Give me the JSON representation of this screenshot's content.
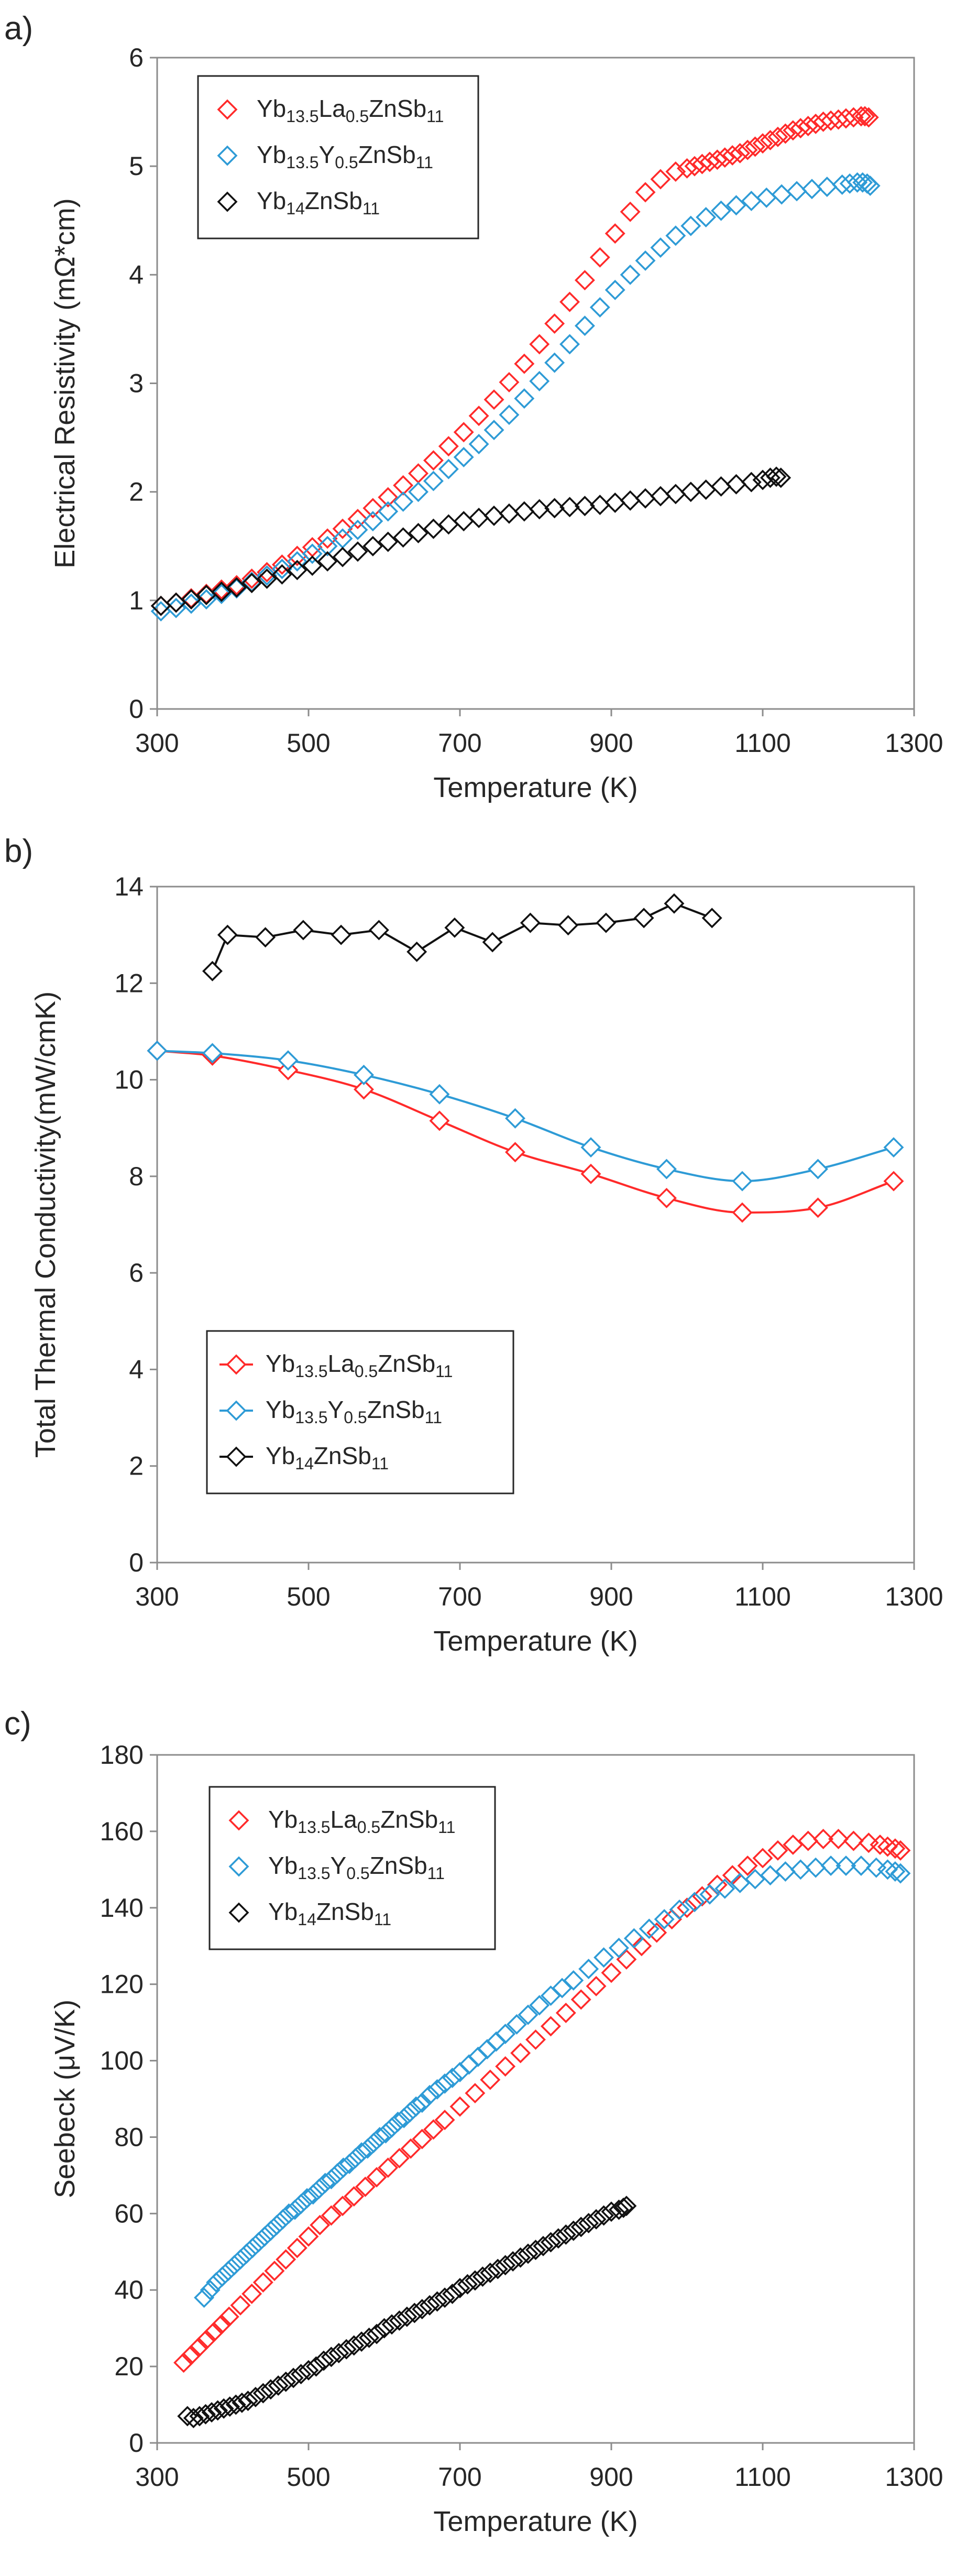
{
  "chart_data": [
    {
      "panel_label": "a)",
      "type": "scatter",
      "xlabel": "Temperature (K)",
      "ylabel": "Electrical Resistivity (mΩ*cm)",
      "xlim": [
        300,
        1300
      ],
      "ylim": [
        0,
        6
      ],
      "xticks": [
        300,
        500,
        700,
        900,
        1100,
        1300
      ],
      "yticks": [
        0,
        1,
        2,
        3,
        4,
        5,
        6
      ],
      "x_tick_labels": [
        "300",
        "500",
        "700",
        "900",
        "1100",
        "1300"
      ],
      "y_tick_labels": [
        "0",
        "1",
        "2",
        "3",
        "4",
        "5",
        "6"
      ],
      "legend_position": "top-left",
      "series": [
        {
          "name": "Yb13.5La0.5ZnSb11",
          "legend": {
            "base": "Yb",
            "sub1": "13.5",
            "mid": "La",
            "sub2": "0.5",
            "post": "ZnSb",
            "sub3": "11"
          },
          "color": "#ff2a2a",
          "marker": "diamond",
          "line": false,
          "x": [
            305,
            325,
            345,
            365,
            385,
            405,
            425,
            445,
            465,
            485,
            505,
            525,
            545,
            565,
            585,
            605,
            625,
            645,
            665,
            685,
            705,
            725,
            745,
            765,
            785,
            805,
            825,
            845,
            865,
            885,
            905,
            925,
            945,
            965,
            985,
            1000,
            1010,
            1020,
            1030,
            1040,
            1050,
            1060,
            1070,
            1080,
            1090,
            1100,
            1110,
            1120,
            1130,
            1140,
            1150,
            1160,
            1170,
            1180,
            1190,
            1200,
            1210,
            1220,
            1230,
            1235,
            1240
          ],
          "y": [
            0.95,
            0.98,
            1.02,
            1.06,
            1.1,
            1.14,
            1.2,
            1.26,
            1.33,
            1.41,
            1.49,
            1.57,
            1.66,
            1.75,
            1.85,
            1.95,
            2.06,
            2.17,
            2.29,
            2.42,
            2.55,
            2.7,
            2.85,
            3.01,
            3.18,
            3.36,
            3.55,
            3.75,
            3.95,
            4.16,
            4.38,
            4.58,
            4.76,
            4.88,
            4.95,
            4.98,
            5.0,
            5.02,
            5.04,
            5.06,
            5.08,
            5.1,
            5.12,
            5.15,
            5.18,
            5.21,
            5.24,
            5.27,
            5.3,
            5.33,
            5.35,
            5.37,
            5.39,
            5.41,
            5.42,
            5.43,
            5.44,
            5.45,
            5.46,
            5.46,
            5.45
          ]
        },
        {
          "name": "Yb13.5Y0.5ZnSb11",
          "legend": {
            "base": "Yb",
            "sub1": "13.5",
            "mid": "Y",
            "sub2": "0.5",
            "post": "ZnSb",
            "sub3": "11"
          },
          "color": "#2e9bd6",
          "marker": "diamond",
          "line": false,
          "x": [
            305,
            325,
            345,
            365,
            385,
            405,
            425,
            445,
            465,
            485,
            505,
            525,
            545,
            565,
            585,
            605,
            625,
            645,
            665,
            685,
            705,
            725,
            745,
            765,
            785,
            805,
            825,
            845,
            865,
            885,
            905,
            925,
            945,
            965,
            985,
            1005,
            1025,
            1045,
            1065,
            1085,
            1105,
            1125,
            1145,
            1165,
            1185,
            1205,
            1215,
            1225,
            1232,
            1238,
            1242
          ],
          "y": [
            0.9,
            0.93,
            0.97,
            1.01,
            1.06,
            1.11,
            1.17,
            1.23,
            1.29,
            1.36,
            1.43,
            1.5,
            1.57,
            1.65,
            1.73,
            1.82,
            1.91,
            2.0,
            2.1,
            2.21,
            2.32,
            2.44,
            2.57,
            2.71,
            2.86,
            3.02,
            3.19,
            3.36,
            3.53,
            3.7,
            3.86,
            4.0,
            4.13,
            4.25,
            4.36,
            4.45,
            4.53,
            4.59,
            4.64,
            4.68,
            4.71,
            4.74,
            4.77,
            4.79,
            4.81,
            4.83,
            4.84,
            4.85,
            4.85,
            4.84,
            4.82
          ]
        },
        {
          "name": "Yb14ZnSb11",
          "legend": {
            "base": "Yb",
            "sub1": "14",
            "mid": "",
            "sub2": "",
            "post": "ZnSb",
            "sub3": "11"
          },
          "color": "#111111",
          "marker": "diamond",
          "line": false,
          "x": [
            305,
            325,
            345,
            365,
            385,
            405,
            425,
            445,
            465,
            485,
            505,
            525,
            545,
            565,
            585,
            605,
            625,
            645,
            665,
            685,
            705,
            725,
            745,
            765,
            785,
            805,
            825,
            845,
            865,
            885,
            905,
            925,
            945,
            965,
            985,
            1005,
            1025,
            1045,
            1065,
            1085,
            1100,
            1110,
            1118,
            1124
          ],
          "y": [
            0.95,
            0.98,
            1.01,
            1.05,
            1.08,
            1.12,
            1.16,
            1.2,
            1.24,
            1.28,
            1.32,
            1.36,
            1.4,
            1.45,
            1.5,
            1.54,
            1.58,
            1.62,
            1.66,
            1.7,
            1.73,
            1.76,
            1.78,
            1.8,
            1.82,
            1.84,
            1.85,
            1.86,
            1.87,
            1.88,
            1.9,
            1.92,
            1.94,
            1.96,
            1.98,
            2.0,
            2.02,
            2.05,
            2.07,
            2.09,
            2.11,
            2.13,
            2.14,
            2.13
          ]
        }
      ]
    },
    {
      "panel_label": "b)",
      "type": "line",
      "xlabel": "Temperature (K)",
      "ylabel": "Total Thermal Conductivity(mW/cmK)",
      "xlim": [
        300,
        1300
      ],
      "ylim": [
        0,
        14
      ],
      "xticks": [
        300,
        500,
        700,
        900,
        1100,
        1300
      ],
      "yticks": [
        0,
        2,
        4,
        6,
        8,
        10,
        12,
        14
      ],
      "x_tick_labels": [
        "300",
        "500",
        "700",
        "900",
        "1100",
        "1300"
      ],
      "y_tick_labels": [
        "0",
        "2",
        "4",
        "6",
        "8",
        "10",
        "12",
        "14"
      ],
      "legend_position": "bottom-left",
      "series": [
        {
          "name": "Yb13.5La0.5ZnSb11",
          "legend": {
            "base": "Yb",
            "sub1": "13.5",
            "mid": "La",
            "sub2": "0.5",
            "post": "ZnSb",
            "sub3": "11"
          },
          "color": "#ff2a2a",
          "marker": "diamond",
          "line": true,
          "x": [
            300,
            373,
            473,
            573,
            673,
            773,
            873,
            973,
            1073,
            1173,
            1273
          ],
          "y": [
            10.6,
            10.5,
            10.2,
            9.8,
            9.15,
            8.5,
            8.05,
            7.55,
            7.25,
            7.35,
            7.9
          ]
        },
        {
          "name": "Yb13.5Y0.5ZnSb11",
          "legend": {
            "base": "Yb",
            "sub1": "13.5",
            "mid": "Y",
            "sub2": "0.5",
            "post": "ZnSb",
            "sub3": "11"
          },
          "color": "#2e9bd6",
          "marker": "diamond",
          "line": true,
          "x": [
            300,
            373,
            473,
            573,
            673,
            773,
            873,
            973,
            1073,
            1173,
            1273
          ],
          "y": [
            10.6,
            10.55,
            10.4,
            10.1,
            9.7,
            9.2,
            8.6,
            8.15,
            7.9,
            8.15,
            8.6
          ]
        },
        {
          "name": "Yb14ZnSb11",
          "legend": {
            "base": "Yb",
            "sub1": "14",
            "mid": "",
            "sub2": "",
            "post": "ZnSb",
            "sub3": "11"
          },
          "color": "#111111",
          "marker": "diamond",
          "line": true,
          "x": [
            373,
            393,
            443,
            493,
            543,
            593,
            643,
            693,
            743,
            793,
            843,
            893,
            943,
            983,
            1033
          ],
          "y": [
            12.25,
            13.0,
            12.95,
            13.1,
            13.0,
            13.1,
            12.65,
            13.15,
            12.85,
            13.25,
            13.2,
            13.25,
            13.35,
            13.65,
            13.35
          ]
        }
      ]
    },
    {
      "panel_label": "c)",
      "type": "scatter",
      "xlabel": "Temperature (K)",
      "ylabel": "Seebeck (μV/K)",
      "xlim": [
        300,
        1300
      ],
      "ylim": [
        0,
        180
      ],
      "xticks": [
        300,
        500,
        700,
        900,
        1100,
        1300
      ],
      "yticks": [
        0,
        20,
        40,
        60,
        80,
        100,
        120,
        140,
        160,
        180
      ],
      "x_tick_labels": [
        "300",
        "500",
        "700",
        "900",
        "1100",
        "1300"
      ],
      "y_tick_labels": [
        "0",
        "20",
        "40",
        "60",
        "80",
        "100",
        "120",
        "140",
        "160",
        "180"
      ],
      "legend_position": "top-left",
      "series": [
        {
          "name": "Yb13.5La0.5ZnSb11",
          "legend": {
            "base": "Yb",
            "sub1": "13.5",
            "mid": "La",
            "sub2": "0.5",
            "post": "ZnSb",
            "sub3": "11"
          },
          "color": "#ff2a2a",
          "marker": "diamond",
          "line": false,
          "x": [
            335,
            345,
            355,
            365,
            375,
            385,
            395,
            410,
            425,
            440,
            455,
            470,
            485,
            500,
            515,
            530,
            545,
            560,
            575,
            590,
            605,
            620,
            635,
            650,
            665,
            680,
            700,
            720,
            740,
            760,
            780,
            800,
            820,
            840,
            860,
            880,
            900,
            920,
            940,
            960,
            980,
            1000,
            1020,
            1040,
            1060,
            1080,
            1100,
            1120,
            1140,
            1160,
            1180,
            1200,
            1220,
            1240,
            1255,
            1265,
            1275,
            1282
          ],
          "y": [
            21,
            23,
            25,
            27,
            29,
            31,
            33,
            36,
            39,
            42,
            45,
            48,
            51,
            54,
            57,
            59.5,
            62,
            64.5,
            67,
            69.5,
            72,
            74.5,
            77,
            79.5,
            82,
            84.5,
            88,
            91.5,
            95,
            98.5,
            102,
            105.5,
            109,
            112.5,
            116,
            119.5,
            123,
            126.5,
            130,
            133.5,
            137,
            140,
            143,
            146,
            148.5,
            151,
            153,
            155,
            156.5,
            157.5,
            158,
            158,
            157.5,
            157,
            156.5,
            156,
            155.5,
            155
          ]
        },
        {
          "name": "Yb13.5Y0.5ZnSb11",
          "legend": {
            "base": "Yb",
            "sub1": "13.5",
            "mid": "Y",
            "sub2": "0.5",
            "post": "ZnSb",
            "sub3": "11"
          },
          "color": "#2e9bd6",
          "marker": "diamond",
          "line": false,
          "x": [
            362,
            370,
            378,
            386,
            394,
            402,
            410,
            418,
            426,
            434,
            442,
            450,
            458,
            466,
            474,
            482,
            490,
            498,
            506,
            514,
            522,
            530,
            538,
            546,
            554,
            562,
            570,
            578,
            586,
            594,
            602,
            610,
            618,
            626,
            634,
            642,
            650,
            660,
            670,
            680,
            690,
            700,
            712,
            724,
            736,
            748,
            760,
            775,
            790,
            805,
            820,
            835,
            850,
            870,
            890,
            910,
            930,
            950,
            970,
            990,
            1010,
            1030,
            1050,
            1070,
            1090,
            1110,
            1130,
            1150,
            1170,
            1190,
            1210,
            1230,
            1250,
            1265,
            1275,
            1282
          ],
          "y": [
            38,
            40,
            42,
            43.5,
            45,
            46.5,
            48,
            49.5,
            51,
            52.5,
            54,
            55.5,
            57,
            58.5,
            60,
            61,
            62.5,
            64,
            65,
            66.5,
            68,
            69,
            70.5,
            72,
            73,
            74.5,
            76,
            77,
            78.5,
            80,
            81,
            82.5,
            84,
            85,
            86.5,
            88,
            89,
            91,
            92.5,
            94,
            95.5,
            97,
            99,
            101,
            103,
            105,
            107,
            109.5,
            112,
            114.5,
            117,
            119,
            121,
            124,
            127,
            129.5,
            132,
            134.5,
            137,
            139.5,
            141.5,
            143.5,
            145,
            146.5,
            147.5,
            148.5,
            149.5,
            150,
            150.5,
            151,
            151,
            151,
            150.5,
            150,
            149.5,
            149
          ]
        },
        {
          "name": "Yb14ZnSb11",
          "legend": {
            "base": "Yb",
            "sub1": "14",
            "mid": "",
            "sub2": "",
            "post": "ZnSb",
            "sub3": "11"
          },
          "color": "#111111",
          "marker": "diamond",
          "line": false,
          "x": [
            340,
            348,
            356,
            364,
            372,
            380,
            388,
            396,
            404,
            412,
            420,
            430,
            440,
            450,
            460,
            470,
            480,
            490,
            500,
            510,
            520,
            530,
            540,
            550,
            560,
            570,
            580,
            590,
            600,
            610,
            620,
            630,
            640,
            650,
            660,
            670,
            680,
            690,
            700,
            710,
            720,
            730,
            740,
            750,
            760,
            770,
            780,
            790,
            800,
            810,
            820,
            830,
            840,
            850,
            860,
            870,
            880,
            890,
            900,
            910,
            916,
            920
          ],
          "y": [
            7,
            6.5,
            7,
            7.5,
            8,
            8.5,
            9,
            9.5,
            10,
            10.5,
            11,
            12,
            13,
            14,
            15,
            16,
            17,
            18,
            19,
            20,
            21.5,
            22.5,
            23.5,
            24.5,
            25.5,
            26.5,
            27.5,
            28.5,
            30,
            31,
            32,
            33,
            34,
            35,
            36,
            37,
            38,
            39,
            40.5,
            41.5,
            42.5,
            43.5,
            44.5,
            45.5,
            46.5,
            47.5,
            48.5,
            49.5,
            50.5,
            51.5,
            52.5,
            53.5,
            54.5,
            55.5,
            56.5,
            57.5,
            58.5,
            59.5,
            60.5,
            61,
            61.5,
            62
          ]
        }
      ]
    }
  ]
}
